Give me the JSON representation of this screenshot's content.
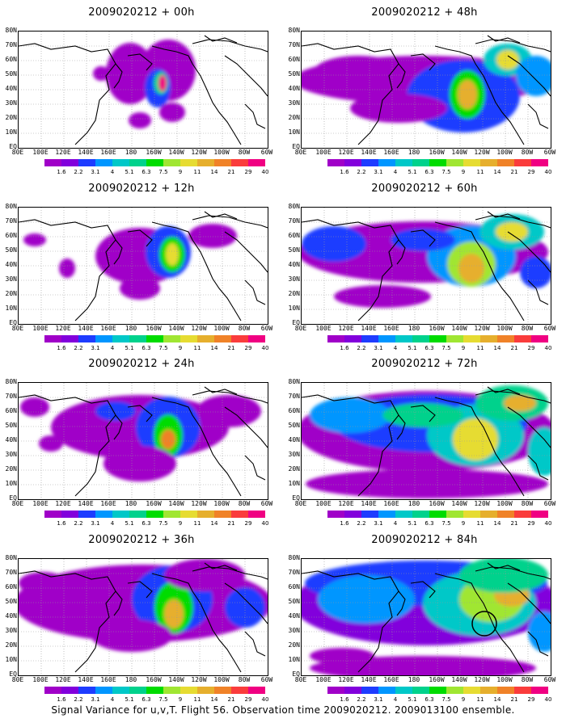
{
  "footer": "Signal Variance for u,v,T. Flight 56. Observation time 2009020212. 2009013100 ensemble.",
  "lat_labels": [
    "80N",
    "70N",
    "60N",
    "50N",
    "40N",
    "30N",
    "20N",
    "10N",
    "EQ"
  ],
  "lon_labels": [
    "80E",
    "100E",
    "120E",
    "140E",
    "160E",
    "180",
    "160W",
    "140W",
    "120W",
    "100W",
    "80W",
    "60W"
  ],
  "colorbar": {
    "levels": [
      "1.6",
      "2.2",
      "3.1",
      "4",
      "5.1",
      "6.3",
      "7.5",
      "9",
      "11",
      "14",
      "21",
      "29",
      "40"
    ],
    "colors": [
      "#a000c8",
      "#8200dc",
      "#1e3cff",
      "#0096ff",
      "#00c8c8",
      "#00d28c",
      "#00dc00",
      "#a0e632",
      "#e6dc32",
      "#e6af2d",
      "#f08228",
      "#fa3c3c",
      "#f00082"
    ]
  },
  "panels": [
    {
      "title": "2009020212 + 00h",
      "lead": "00h",
      "circle": false
    },
    {
      "title": "2009020212 + 48h",
      "lead": "48h",
      "circle": false
    },
    {
      "title": "2009020212 + 12h",
      "lead": "12h",
      "circle": false
    },
    {
      "title": "2009020212 + 60h",
      "lead": "60h",
      "circle": false
    },
    {
      "title": "2009020212 + 24h",
      "lead": "24h",
      "circle": false
    },
    {
      "title": "2009020212 + 72h",
      "lead": "72h",
      "circle": false
    },
    {
      "title": "2009020212 + 36h",
      "lead": "36h",
      "circle": false
    },
    {
      "title": "2009020212 + 84h",
      "lead": "84h",
      "circle": true
    }
  ]
}
